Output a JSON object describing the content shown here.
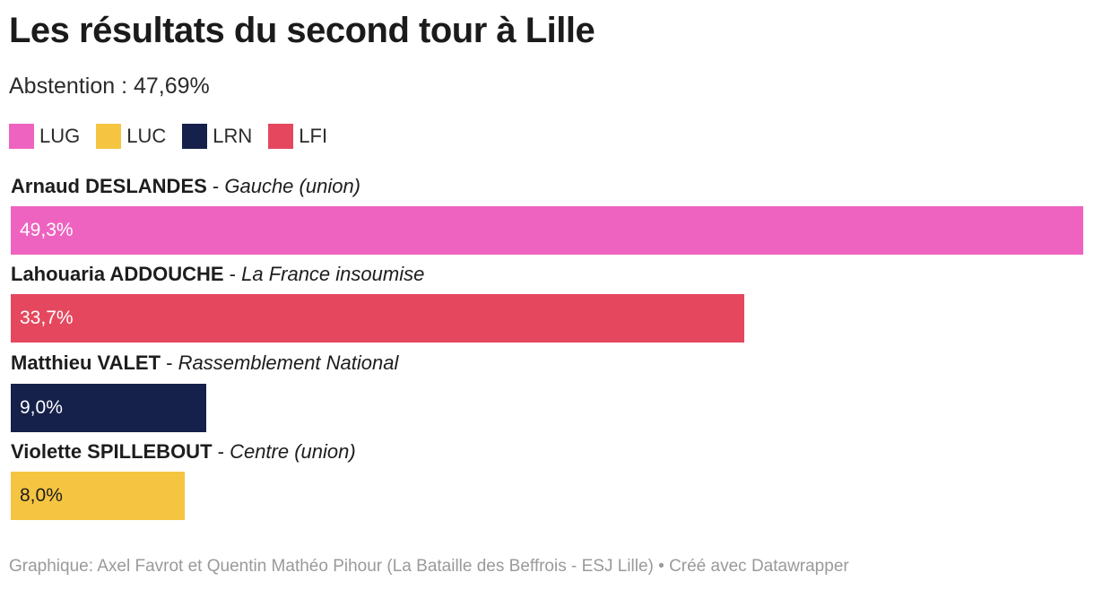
{
  "title": "Les résultats du second tour à Lille",
  "subtitle": "Abstention : 47,69%",
  "legend": [
    {
      "label": "LUG",
      "color": "#ee63c0"
    },
    {
      "label": "LUC",
      "color": "#f5c542"
    },
    {
      "label": "LRN",
      "color": "#15214a"
    },
    {
      "label": "LFI",
      "color": "#e5485e"
    }
  ],
  "chart_data": {
    "type": "bar",
    "orientation": "horizontal",
    "title": "Les résultats du second tour à Lille",
    "xlim": [
      0,
      49.3
    ],
    "rows": [
      {
        "name": "Arnaud DESLANDES",
        "separator": " - ",
        "party": "Gauche (union)",
        "value": 49.3,
        "value_label": "49,3%",
        "color": "#ee63c0",
        "text_color": "#ffffff"
      },
      {
        "name": "Lahouaria ADDOUCHE",
        "separator": " - ",
        "party": "La France insoumise",
        "value": 33.7,
        "value_label": "33,7%",
        "color": "#e5485e",
        "text_color": "#ffffff"
      },
      {
        "name": "Matthieu VALET",
        "separator": " - ",
        "party": "Rassemblement National",
        "value": 9.0,
        "value_label": "9,0%",
        "color": "#15214a",
        "text_color": "#ffffff"
      },
      {
        "name": "Violette SPILLEBOUT",
        "separator": " - ",
        "party": "Centre (union)",
        "value": 8.0,
        "value_label": "8,0%",
        "color": "#f5c542",
        "text_color": "#1d1d1d"
      }
    ]
  },
  "footer": "Graphique: Axel Favrot et Quentin Mathéo Pihour (La Bataille des Beffrois - ESJ Lille) • Créé avec Datawrapper"
}
